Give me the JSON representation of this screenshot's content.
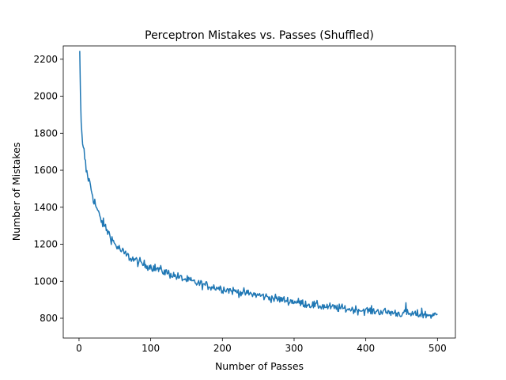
{
  "chart_data": {
    "type": "line",
    "title": "Perceptron Mistakes vs. Passes (Shuffled)",
    "xlabel": "Number of Passes",
    "ylabel": "Number of Mistakes",
    "xlim": [
      -22,
      525
    ],
    "ylim": [
      693,
      2272
    ],
    "xticks": [
      0,
      100,
      200,
      300,
      400,
      500
    ],
    "yticks": [
      800,
      1000,
      1200,
      1400,
      1600,
      1800,
      2000,
      2200
    ],
    "grid": false,
    "legend": "none",
    "line_color": "#1f77b4",
    "x_range": [
      1,
      500
    ],
    "series": [
      {
        "x": [
          1,
          2,
          3,
          4,
          5,
          7,
          10,
          15,
          20,
          25,
          30,
          40,
          50,
          60,
          70,
          80,
          90,
          100,
          120,
          140,
          160,
          180,
          200,
          225,
          250,
          275,
          300,
          325,
          350,
          375,
          400,
          425,
          450,
          475,
          500
        ],
        "y": [
          2245,
          2010,
          1860,
          1800,
          1725,
          1700,
          1600,
          1530,
          1450,
          1390,
          1335,
          1270,
          1200,
          1160,
          1130,
          1110,
          1090,
          1080,
          1050,
          1020,
          995,
          975,
          960,
          940,
          925,
          905,
          890,
          872,
          860,
          850,
          842,
          835,
          825,
          820,
          815
        ]
      }
    ]
  }
}
